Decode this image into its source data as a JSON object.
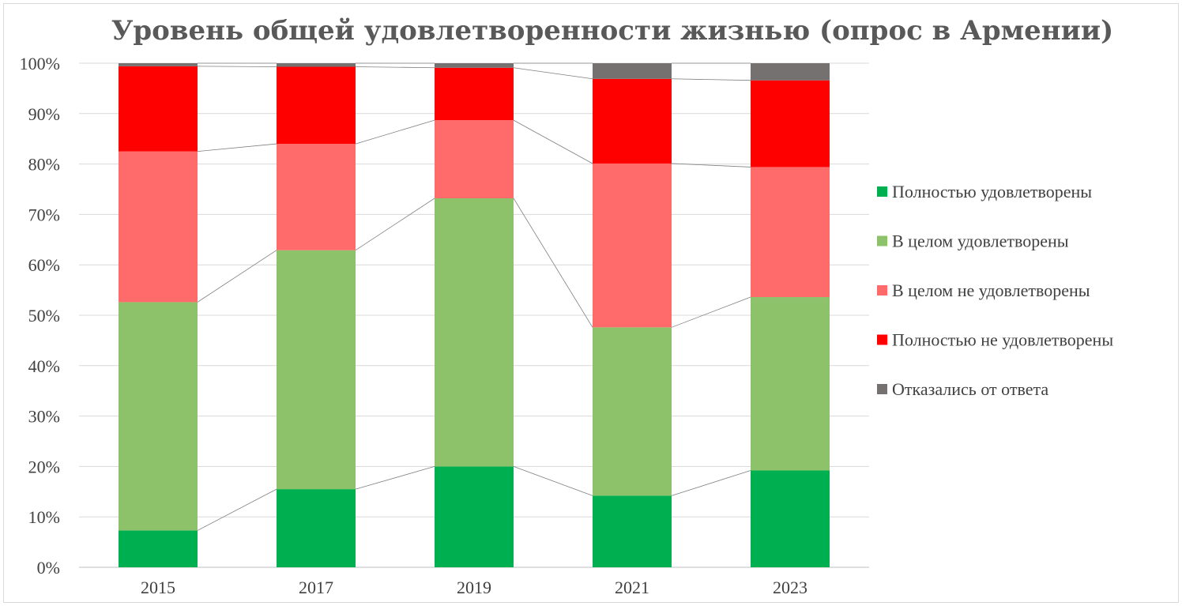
{
  "chart_data": {
    "type": "bar",
    "stacked": true,
    "percent": true,
    "title": "Уровень общей удовлетворенности жизнью (опрос в Армении)",
    "categories": [
      "2015",
      "2017",
      "2019",
      "2021",
      "2023"
    ],
    "ylim": [
      0,
      100
    ],
    "yticks": [
      "0%",
      "10%",
      "20%",
      "30%",
      "40%",
      "50%",
      "60%",
      "70%",
      "80%",
      "90%",
      "100%"
    ],
    "grid": true,
    "series_lines": true,
    "legend_position": "right",
    "series": [
      {
        "name": "Полностью удовлетворены",
        "color": "#00b050",
        "values": [
          7.3,
          15.5,
          20.0,
          14.2,
          19.2
        ]
      },
      {
        "name": "В целом удовлетворены",
        "color": "#8dc26b",
        "values": [
          45.3,
          47.4,
          53.2,
          33.4,
          34.4
        ]
      },
      {
        "name": "В целом не удовлетворены",
        "color": "#ff6b6b",
        "values": [
          29.9,
          21.1,
          15.5,
          32.5,
          25.8
        ]
      },
      {
        "name": "Полностью не удовлетворены",
        "color": "#ff0000",
        "values": [
          16.9,
          15.3,
          10.4,
          16.8,
          17.2
        ]
      },
      {
        "name": "Отказались от ответа",
        "color": "#767171",
        "values": [
          0.6,
          0.7,
          0.9,
          3.1,
          3.4
        ]
      }
    ]
  }
}
